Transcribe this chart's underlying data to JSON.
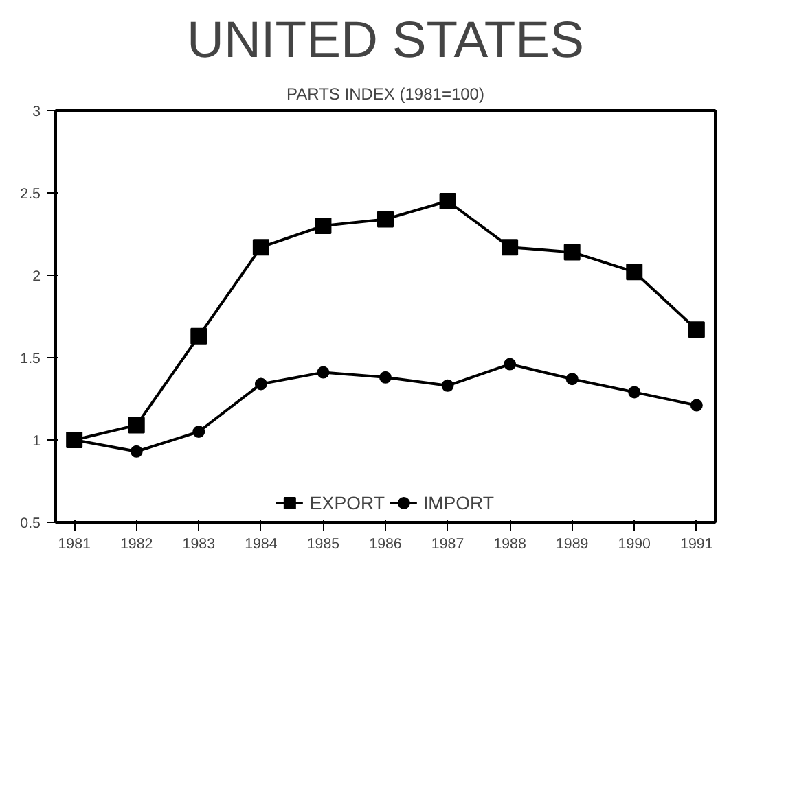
{
  "chart_data": {
    "type": "line",
    "title": "UNITED STATES",
    "subtitle": "PARTS INDEX (1981=100)",
    "categories": [
      "1981",
      "1982",
      "1983",
      "1984",
      "1985",
      "1986",
      "1987",
      "1988",
      "1989",
      "1990",
      "1991"
    ],
    "series": [
      {
        "name": "EXPORT",
        "color": "#000000",
        "marker": "square",
        "values": [
          1.0,
          1.09,
          1.63,
          2.17,
          2.3,
          2.34,
          2.45,
          2.17,
          2.14,
          2.02,
          1.67
        ]
      },
      {
        "name": "IMPORT",
        "color": "#000000",
        "marker": "circle",
        "values": [
          1.0,
          0.93,
          1.05,
          1.34,
          1.41,
          1.38,
          1.33,
          1.46,
          1.37,
          1.29,
          1.21
        ]
      }
    ],
    "ylim": [
      0.5,
      3
    ],
    "yticks": [
      {
        "value": 0.5,
        "label": "0.5"
      },
      1,
      1.5,
      2,
      2.5,
      3
    ],
    "legend": "bottom",
    "grid": false,
    "line_style": "solid"
  }
}
